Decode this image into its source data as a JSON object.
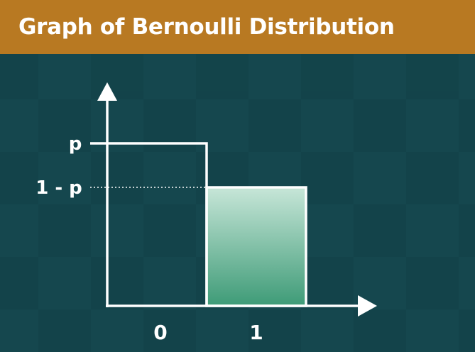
{
  "title": "Graph of Bernoulli Distribution",
  "colors": {
    "title_bar": "#b87922",
    "background": "#15474e",
    "axis": "#ffffff",
    "bar_outline": "#ffffff",
    "bar_fill_top": "#c7e6d8",
    "bar_fill_bottom": "#3e9b77",
    "label_text": "#ffffff"
  },
  "chart_data": {
    "type": "bar",
    "categories": [
      "0",
      "1"
    ],
    "values": [
      "p",
      "1 - p"
    ],
    "y_tick_labels": [
      "p",
      "1 - p"
    ],
    "x_tick_labels": [
      "0",
      "1"
    ],
    "grid": false,
    "legend": "none",
    "title": "Graph of Bernoulli Distribution",
    "xlabel": "",
    "ylabel": ""
  }
}
